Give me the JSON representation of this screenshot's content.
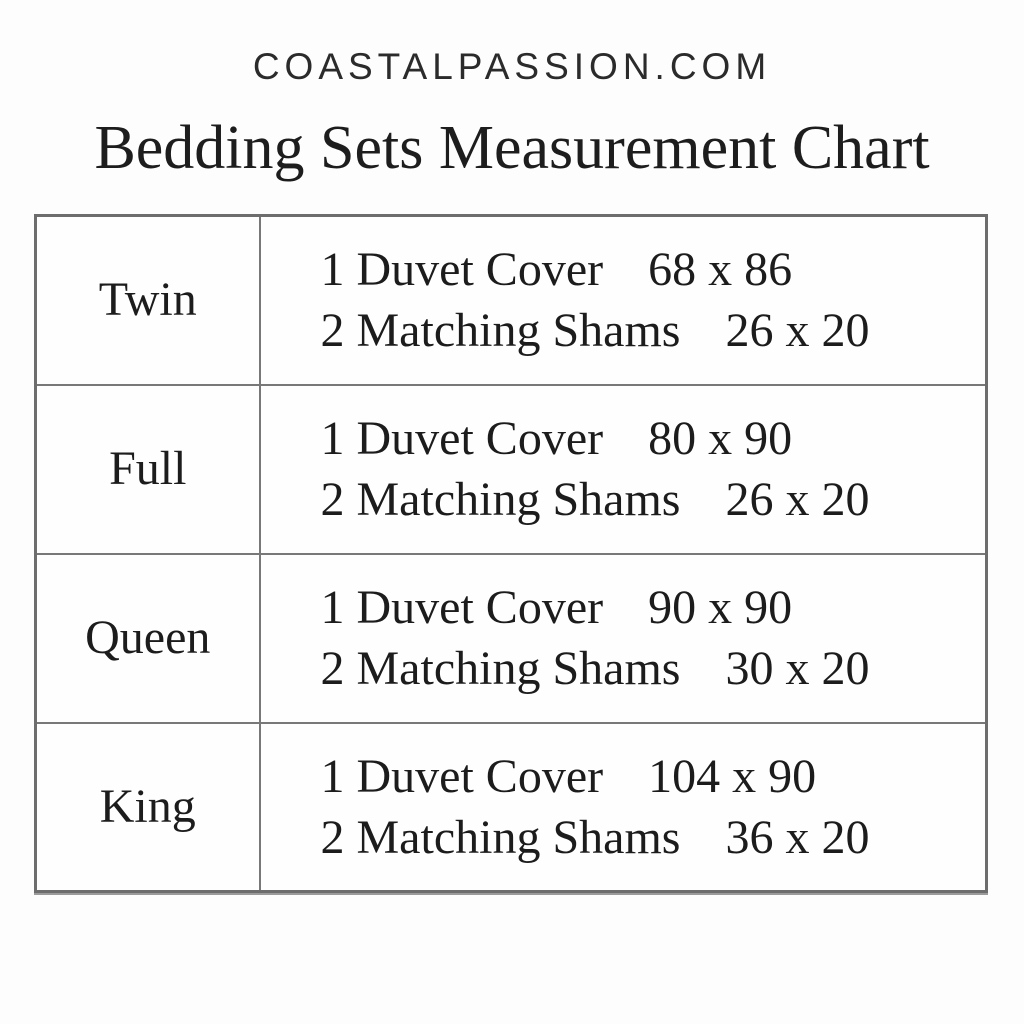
{
  "header": {
    "site_name": "COASTALPASSION.COM"
  },
  "title": "Bedding Sets Measurement Chart",
  "colors": {
    "background": "#fdfdfd",
    "text": "#1c1c1c",
    "table_border": "#787878"
  },
  "chart_data": {
    "type": "table",
    "title": "Bedding Sets Measurement Chart",
    "source_label": "COASTALPASSION.COM",
    "rows": [
      {
        "size": "Twin",
        "items": [
          {
            "label": "1 Duvet Cover",
            "dimensions": "68 x 86"
          },
          {
            "label": "2 Matching Shams",
            "dimensions": "26 x 20"
          }
        ]
      },
      {
        "size": "Full",
        "items": [
          {
            "label": "1 Duvet Cover",
            "dimensions": "80 x 90"
          },
          {
            "label": "2 Matching Shams",
            "dimensions": "26 x 20"
          }
        ]
      },
      {
        "size": "Queen",
        "items": [
          {
            "label": "1 Duvet Cover",
            "dimensions": "90 x 90"
          },
          {
            "label": "2 Matching Shams",
            "dimensions": "30 x 20"
          }
        ]
      },
      {
        "size": "King",
        "items": [
          {
            "label": "1 Duvet Cover",
            "dimensions": "104 x 90"
          },
          {
            "label": "2 Matching Shams",
            "dimensions": "36 x 20"
          }
        ]
      }
    ]
  }
}
